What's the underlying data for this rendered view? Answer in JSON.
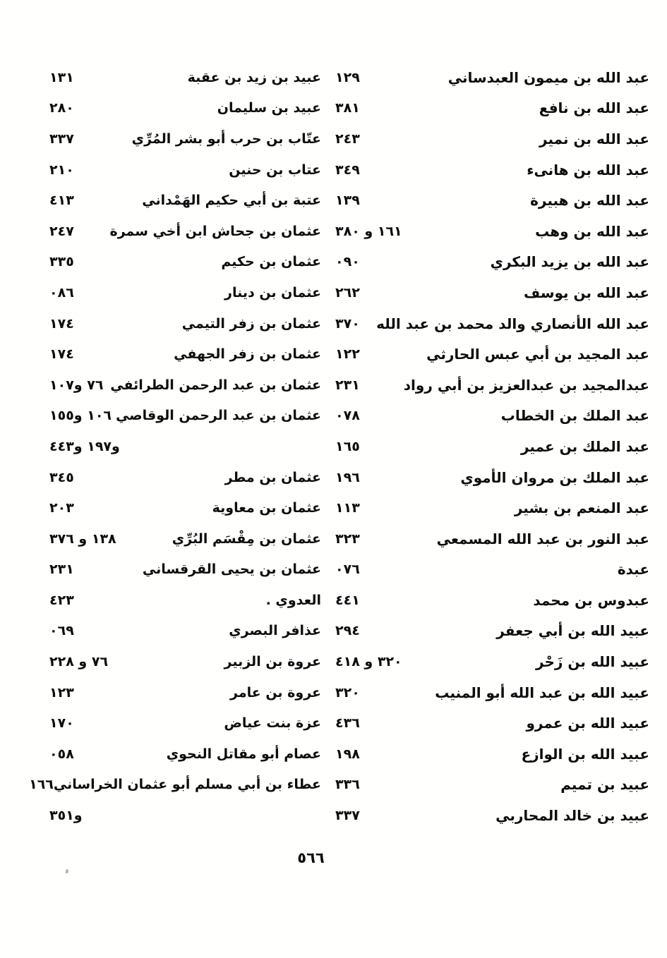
{
  "page": {
    "footer_page_number": "٥٦٦"
  },
  "columns": {
    "right": {
      "entries": [
        {
          "name": "عبد الله بن ميمون العبدساني",
          "pages": "١٢٩"
        },
        {
          "name": "عبد الله بن نافع",
          "pages": "٣٨١"
        },
        {
          "name": "عبد الله بن نمير",
          "pages": "٢٤٣"
        },
        {
          "name": "عبد الله بن هانىء",
          "pages": "٣٤٩"
        },
        {
          "name": "عبد الله بن هبيرة",
          "pages": "١٣٩"
        },
        {
          "name": "عبد الله بن وهب",
          "pages": "١٦١ و ٣٨٠"
        },
        {
          "name": "عبد الله بن يزيد البكري",
          "pages": "٠٩٠"
        },
        {
          "name": "عبد الله بن يوسف",
          "pages": "٢٦٢"
        },
        {
          "name": "عبد الله الأنصاري والد محمد بن عبد الله",
          "pages": "٣٧٠"
        },
        {
          "name": "عبد المجيد بن أبي عبس الحارثي",
          "pages": "١٢٢"
        },
        {
          "name": "عبدالمجيد بن عبدالعزيز بن أبي رواد",
          "pages": "٢٣١"
        },
        {
          "name": "عبد الملك بن الخطاب",
          "pages": "٠٧٨"
        },
        {
          "name": "عبد الملك بن عمير",
          "pages": "١٦٥"
        },
        {
          "name": "عبد الملك بن مروان الأموي",
          "pages": "١٩٦"
        },
        {
          "name": "عبد المنعم بن بشير",
          "pages": "١١٣"
        },
        {
          "name": "عبد النور بن عبد الله المسمعي",
          "pages": "٣٢٣"
        },
        {
          "name": "عبدة",
          "pages": "٠٧٦"
        },
        {
          "name": "عبدوس بن محمد",
          "pages": "٤٤١"
        },
        {
          "name": "عبيد الله بن أبي جعفر",
          "pages": "٢٩٤"
        },
        {
          "name": "عبيد الله بن زَحْر",
          "pages": "٣٢٠ و ٤١٨"
        },
        {
          "name": "عبيد الله بن عبد الله أبو المنيب",
          "pages": "٣٢٠"
        },
        {
          "name": "عبيد الله بن عمرو",
          "pages": "٤٣٦"
        },
        {
          "name": "عبيد الله بن الوازع",
          "pages": "١٩٨"
        },
        {
          "name": "عبيد بن تميم",
          "pages": "٣٣٦"
        },
        {
          "name": "عبيد بن خالد المحاربي",
          "pages": "٣٣٧"
        }
      ]
    },
    "left": {
      "entries": [
        {
          "name": "عبيد بن زيد بن عقبة",
          "pages": "١٣١"
        },
        {
          "name": "عبيد بن سليمان",
          "pages": "٢٨٠"
        },
        {
          "name": "عتّاب بن حرب أبو بشر المُرِّي",
          "pages": "٣٣٧"
        },
        {
          "name": "عتاب بن حنين",
          "pages": "٢١٠"
        },
        {
          "name": "عتبة بن أبي حكيم الهَمْداني",
          "pages": "٤١٣"
        },
        {
          "name": "عثمان بن جحاش ابن أخي سمرة",
          "pages": "٢٤٧"
        },
        {
          "name": "عثمان بن حكيم",
          "pages": "٣٣٥"
        },
        {
          "name": "عثمان بن دينار",
          "pages": "٠٨٦"
        },
        {
          "name": "عثمان بن زفر التيمي",
          "pages": "١٧٤"
        },
        {
          "name": "عثمان بن زفر الجهفي",
          "pages": "١٧٤"
        },
        {
          "name": "عثمان بن عبد الرحمن الطرائفي",
          "pages": "٧٦ و١٠٧"
        },
        {
          "name": "عثمان بن عبد الرحمن الوقاصي",
          "pages": "١٠٦ و١٥٥"
        },
        {
          "name": "",
          "pages": "و١٩٧ و٤٤٣"
        },
        {
          "name": "عثمان بن مطر",
          "pages": "٣٤٥"
        },
        {
          "name": "عثمان بن معاوية",
          "pages": "٢٠٣"
        },
        {
          "name": "عثمان بن مِقْسَم البُرِّي",
          "pages": "١٣٨ و ٣٧٦"
        },
        {
          "name": "عثمان بن يحيى القرقساني",
          "pages": "٢٣١"
        },
        {
          "name": "العدوي .",
          "pages": "٤٢٣"
        },
        {
          "name": "عذافر البصري",
          "pages": "٠٦٩"
        },
        {
          "name": "عروة بن الزبير",
          "pages": "٧٦ و ٢٢٨"
        },
        {
          "name": "عروة بن عامر",
          "pages": "١٢٣"
        },
        {
          "name": "عزة بنت عياض",
          "pages": "١٧٠"
        },
        {
          "name": "عصام أبو مقاتل النحوي",
          "pages": "٠٥٨"
        },
        {
          "name": "عطاء بن أبي مسلم أبو عثمان الخراساني",
          "pages": "١٦٦"
        },
        {
          "name": "",
          "pages": "و٣٥١"
        }
      ]
    }
  }
}
